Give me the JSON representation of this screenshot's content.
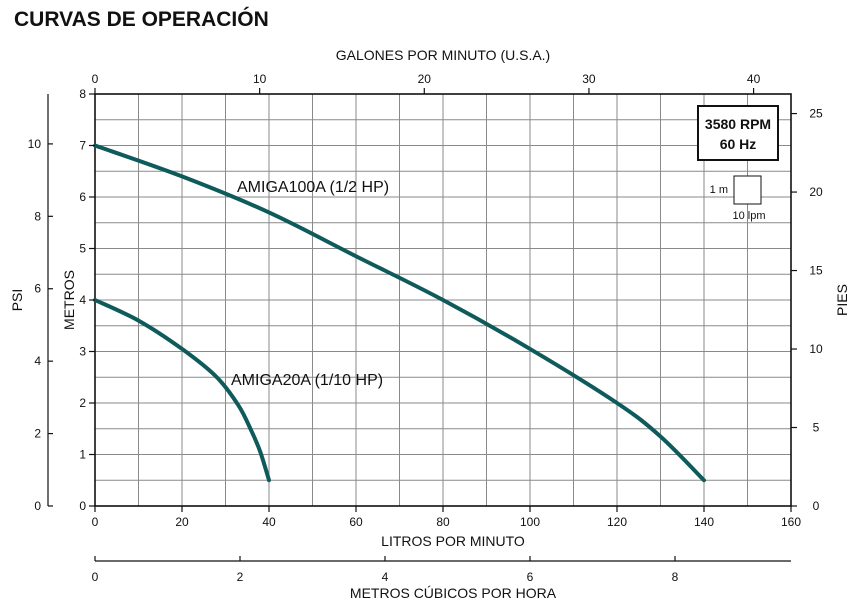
{
  "chart_data": {
    "type": "line",
    "title": "CURVAS DE OPERACIÓN",
    "xlabel": "LITROS POR MINUTO",
    "ylabel": "METROS",
    "xlim": [
      0,
      160
    ],
    "ylim": [
      0,
      8
    ],
    "x_ticks": [
      0,
      20,
      40,
      60,
      80,
      100,
      120,
      140,
      160
    ],
    "y_ticks": [
      0,
      1,
      2,
      3,
      4,
      5,
      6,
      7,
      8
    ],
    "grid": true,
    "top_axis": {
      "label": "GALONES POR MINUTO (U.S.A.)",
      "ticks": [
        0,
        10,
        20,
        30,
        40
      ],
      "factor": 3.785
    },
    "left_axis": {
      "label": "PSI",
      "ticks": [
        0,
        2,
        4,
        6,
        8,
        10
      ],
      "factor": 0.7031
    },
    "right_axis": {
      "label": "PIES",
      "ticks": [
        0,
        5,
        10,
        15,
        20,
        25
      ],
      "factor": 0.3048
    },
    "bottom_axis2": {
      "label": "METROS CÚBICOS POR HORA",
      "ticks": [
        0,
        2,
        4,
        6,
        8
      ],
      "factor": 16.667
    },
    "series": [
      {
        "name": "AMIGA100A (1/2 HP)",
        "x": [
          0,
          20,
          40,
          60,
          80,
          100,
          120,
          130,
          140
        ],
        "y": [
          7.0,
          6.4,
          5.7,
          4.85,
          4.0,
          3.05,
          2.0,
          1.35,
          0.5
        ]
      },
      {
        "name": "AMIGA20A (1/10 HP)",
        "x": [
          0,
          10,
          20,
          28,
          33,
          36,
          38,
          40
        ],
        "y": [
          4.0,
          3.6,
          3.05,
          2.5,
          1.95,
          1.45,
          1.05,
          0.5
        ]
      }
    ],
    "legend_box": {
      "line1": "3580 RPM",
      "line2": "60 Hz"
    },
    "scale_box": {
      "vertical": "1 m",
      "horizontal": "10 lpm"
    }
  },
  "colors": {
    "curve": "#0f5a5a"
  }
}
